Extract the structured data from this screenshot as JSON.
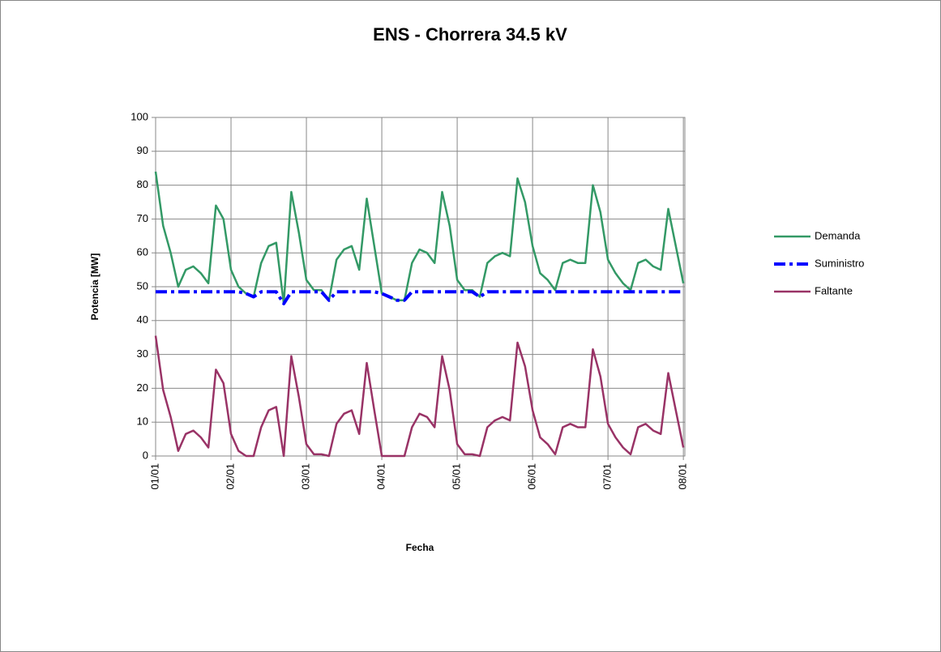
{
  "chart_data": {
    "type": "line",
    "title": "ENS - Chorrera 34.5 kV",
    "xlabel": "Fecha",
    "ylabel": "Potencia [MW]",
    "x": [
      0,
      0.1,
      0.2,
      0.3,
      0.4,
      0.5,
      0.6,
      0.7,
      0.8,
      0.9,
      1,
      1.1,
      1.2,
      1.3,
      1.4,
      1.5,
      1.6,
      1.7,
      1.8,
      1.9,
      2,
      2.1,
      2.2,
      2.3,
      2.4,
      2.5,
      2.6,
      2.7,
      2.8,
      2.9,
      3,
      3.1,
      3.2,
      3.3,
      3.4,
      3.5,
      3.6,
      3.7,
      3.8,
      3.9,
      4,
      4.1,
      4.2,
      4.3,
      4.4,
      4.5,
      4.6,
      4.7,
      4.8,
      4.9,
      5,
      5.1,
      5.2,
      5.3,
      5.4,
      5.5,
      5.6,
      5.7,
      5.8,
      5.9,
      6,
      6.1,
      6.2,
      6.3,
      6.4,
      6.5,
      6.6,
      6.7,
      6.8,
      6.9,
      7
    ],
    "series": [
      {
        "name": "Demanda",
        "color": "#339966",
        "style": "solid",
        "values": [
          84,
          68,
          60,
          50,
          55,
          56,
          54,
          51,
          74,
          70,
          55,
          50,
          48,
          47,
          57,
          62,
          63,
          45,
          78,
          66,
          52,
          49,
          49,
          46,
          58,
          61,
          62,
          55,
          76,
          62,
          48,
          47,
          46,
          46,
          57,
          61,
          60,
          57,
          78,
          68,
          52,
          49,
          49,
          47,
          57,
          59,
          60,
          59,
          82,
          75,
          62,
          54,
          52,
          49,
          57,
          58,
          57,
          57,
          80,
          72,
          58,
          54,
          51,
          49,
          57,
          58,
          56,
          55,
          73,
          62,
          51
        ]
      },
      {
        "name": "Suministro",
        "color": "#0000ff",
        "style": "dashdot",
        "values": [
          48.5,
          48.5,
          48.5,
          48.5,
          48.5,
          48.5,
          48.5,
          48.5,
          48.5,
          48.5,
          48.5,
          48.5,
          48,
          47,
          48.5,
          48.5,
          48.5,
          45,
          48.5,
          48.5,
          48.5,
          48.5,
          48.5,
          46,
          48.5,
          48.5,
          48.5,
          48.5,
          48.5,
          48.5,
          48,
          47,
          46,
          46,
          48.5,
          48.5,
          48.5,
          48.5,
          48.5,
          48.5,
          48.5,
          48.5,
          48.5,
          47,
          48.5,
          48.5,
          48.5,
          48.5,
          48.5,
          48.5,
          48.5,
          48.5,
          48.5,
          48.5,
          48.5,
          48.5,
          48.5,
          48.5,
          48.5,
          48.5,
          48.5,
          48.5,
          48.5,
          48.5,
          48.5,
          48.5,
          48.5,
          48.5,
          48.5,
          48.5,
          48.5
        ]
      },
      {
        "name": "Faltante",
        "color": "#993366",
        "style": "solid",
        "values": [
          35.5,
          19.5,
          11.5,
          1.5,
          6.5,
          7.5,
          5.5,
          2.5,
          25.5,
          21.5,
          6.5,
          1.5,
          0,
          0,
          8.5,
          13.5,
          14.5,
          0,
          29.5,
          17.5,
          3.5,
          0.5,
          0.5,
          0,
          9.5,
          12.5,
          13.5,
          6.5,
          27.5,
          13.5,
          0,
          0,
          0,
          0,
          8.5,
          12.5,
          11.5,
          8.5,
          29.5,
          19.5,
          3.5,
          0.5,
          0.5,
          0,
          8.5,
          10.5,
          11.5,
          10.5,
          33.5,
          26.5,
          13.5,
          5.5,
          3.5,
          0.5,
          8.5,
          9.5,
          8.5,
          8.5,
          31.5,
          23.5,
          9.5,
          5.5,
          2.5,
          0.5,
          8.5,
          9.5,
          7.5,
          6.5,
          24.5,
          13.5,
          2.5
        ]
      }
    ],
    "xlim": [
      0,
      7.02
    ],
    "xticks": [
      {
        "value": 0,
        "label": "01/01"
      },
      {
        "value": 1,
        "label": "02/01"
      },
      {
        "value": 2,
        "label": "03/01"
      },
      {
        "value": 3,
        "label": "04/01"
      },
      {
        "value": 4,
        "label": "05/01"
      },
      {
        "value": 5,
        "label": "06/01"
      },
      {
        "value": 6,
        "label": "07/01"
      },
      {
        "value": 7,
        "label": "08/01"
      }
    ],
    "ylim": [
      0,
      100
    ],
    "yticks": [
      0,
      10,
      20,
      30,
      40,
      50,
      60,
      70,
      80,
      90,
      100
    ],
    "grid": true,
    "legend": "right"
  }
}
